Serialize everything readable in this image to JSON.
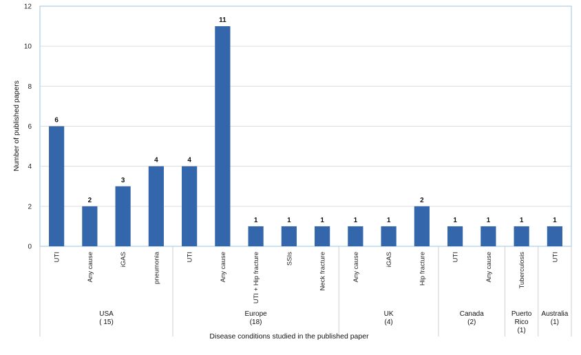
{
  "chart_data": {
    "type": "bar",
    "xlabel": "Disease conditions studied in the published paper",
    "ylabel": "Number of published papers",
    "ylim": [
      0,
      12
    ],
    "yticks": [
      "0",
      "2",
      "4",
      "6",
      "8",
      "10",
      "12"
    ],
    "grid": true,
    "bar_color": "#3366aa",
    "groups": [
      {
        "label_lines": [
          "USA",
          "( 15)"
        ],
        "categories": [
          "UTI",
          "Any cause",
          "iGAS",
          "pneumonia"
        ],
        "values": [
          6,
          2,
          3,
          4
        ]
      },
      {
        "label_lines": [
          "Europe",
          "(18)"
        ],
        "categories": [
          "UTI",
          "Any cause",
          "UTI + Hip fracture",
          "SSIs",
          "Neck fracture"
        ],
        "values": [
          4,
          11,
          1,
          1,
          1
        ]
      },
      {
        "label_lines": [
          "UK",
          "(4)"
        ],
        "categories": [
          "Any cause",
          "iGAS",
          "Hip fracture"
        ],
        "values": [
          1,
          1,
          2
        ]
      },
      {
        "label_lines": [
          "Canada",
          "(2)"
        ],
        "categories": [
          "UTI",
          "Any cause"
        ],
        "values": [
          1,
          1
        ]
      },
      {
        "label_lines": [
          "Puerto",
          "Rico",
          "(1)"
        ],
        "categories": [
          "Tuberculosis"
        ],
        "values": [
          1
        ]
      },
      {
        "label_lines": [
          "Australia",
          "(1)"
        ],
        "categories": [
          "UTI"
        ],
        "values": [
          1
        ]
      }
    ]
  }
}
